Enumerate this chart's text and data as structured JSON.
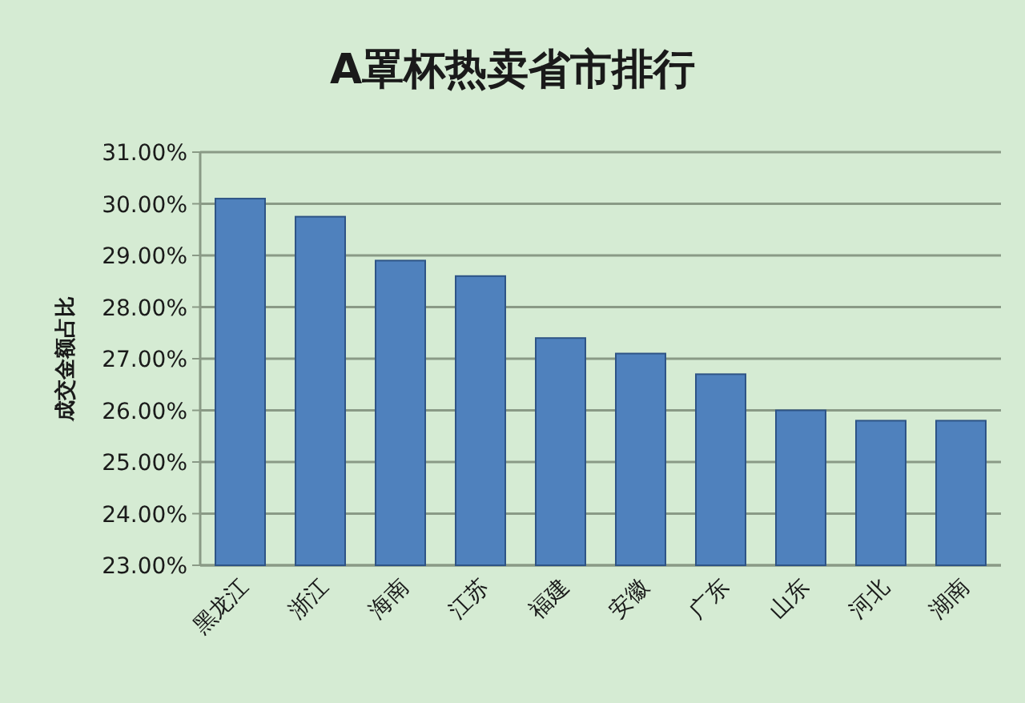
{
  "chart_data": {
    "type": "bar",
    "title": "A罩杯热卖省市排行",
    "ylabel": "成交金额占比",
    "categories": [
      "黑龙江",
      "浙江",
      "海南",
      "江苏",
      "福建",
      "安徽",
      "广东",
      "山东",
      "河北",
      "湖南"
    ],
    "values": [
      30.1,
      29.75,
      28.9,
      28.6,
      27.4,
      27.1,
      26.7,
      26.0,
      25.8,
      25.8
    ],
    "color": "#4f81bd",
    "ylim": [
      23,
      31
    ],
    "yticks": [
      {
        "value": 23,
        "label": "23.00%"
      },
      {
        "value": 24,
        "label": "24.00%"
      },
      {
        "value": 25,
        "label": "25.00%"
      },
      {
        "value": 26,
        "label": "26.00%"
      },
      {
        "value": 27,
        "label": "27.00%"
      },
      {
        "value": 28,
        "label": "28.00%"
      },
      {
        "value": 29,
        "label": "29.00%"
      },
      {
        "value": 30,
        "label": "30.00%"
      },
      {
        "value": 31,
        "label": "31.00%"
      }
    ],
    "grid": "y"
  }
}
